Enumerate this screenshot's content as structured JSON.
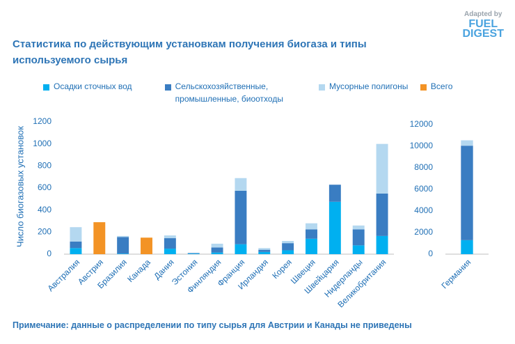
{
  "chart_data": [
    {
      "type": "bar",
      "stacked": true,
      "title": "Статистика по действующим установкам получения биогаза и типы используемого сырья",
      "y_label": "Число биогазовых установок",
      "categories": [
        "Австралия",
        "Австрия",
        "Бразилия",
        "Канада",
        "Дания",
        "Эстония",
        "Финляндия",
        "Франция",
        "Ирландия",
        "Корея",
        "Швеция",
        "Швейцария",
        "Нидерланды",
        "Великобритания"
      ],
      "series": [
        {
          "name": "Осадки сточных вод",
          "color": "#00b0f0",
          "values": [
            55,
            null,
            5,
            null,
            50,
            5,
            15,
            90,
            20,
            35,
            140,
            475,
            80,
            165
          ]
        },
        {
          "name": "Сельскохозяйственные, промышленные, биоотходы",
          "color": "#3a7dc2",
          "values": [
            60,
            null,
            150,
            null,
            95,
            5,
            45,
            485,
            20,
            65,
            85,
            155,
            145,
            385
          ]
        },
        {
          "name": "Мусорные полигоны",
          "color": "#b4d8f0",
          "values": [
            130,
            null,
            10,
            null,
            25,
            2,
            35,
            115,
            15,
            20,
            55,
            0,
            35,
            450
          ]
        },
        {
          "name": "Всего",
          "color": "#f39325",
          "values": [
            null,
            290,
            null,
            150,
            null,
            null,
            null,
            null,
            null,
            null,
            null,
            null,
            null,
            null
          ]
        }
      ],
      "ylim": [
        0,
        1200
      ],
      "yticks": [
        0,
        200,
        400,
        600,
        800,
        1000,
        1200
      ],
      "grid": false
    },
    {
      "type": "bar",
      "stacked": true,
      "categories": [
        "Германия"
      ],
      "series": [
        {
          "color": "#00b0f0",
          "values": [
            1300
          ]
        },
        {
          "color": "#3a7dc2",
          "values": [
            8750
          ]
        },
        {
          "color": "#b4d8f0",
          "values": [
            500
          ]
        }
      ],
      "ylim": [
        0,
        12000
      ],
      "yticks": [
        0,
        2000,
        4000,
        6000,
        8000,
        10000,
        12000
      ],
      "grid": false
    }
  ],
  "note": "Примечание: данные о распределении по типу сырья для Австрии и Канады не приведены",
  "logo": {
    "line1": "Adapted by",
    "line2": "FUEL",
    "line3": "DIGEST"
  }
}
